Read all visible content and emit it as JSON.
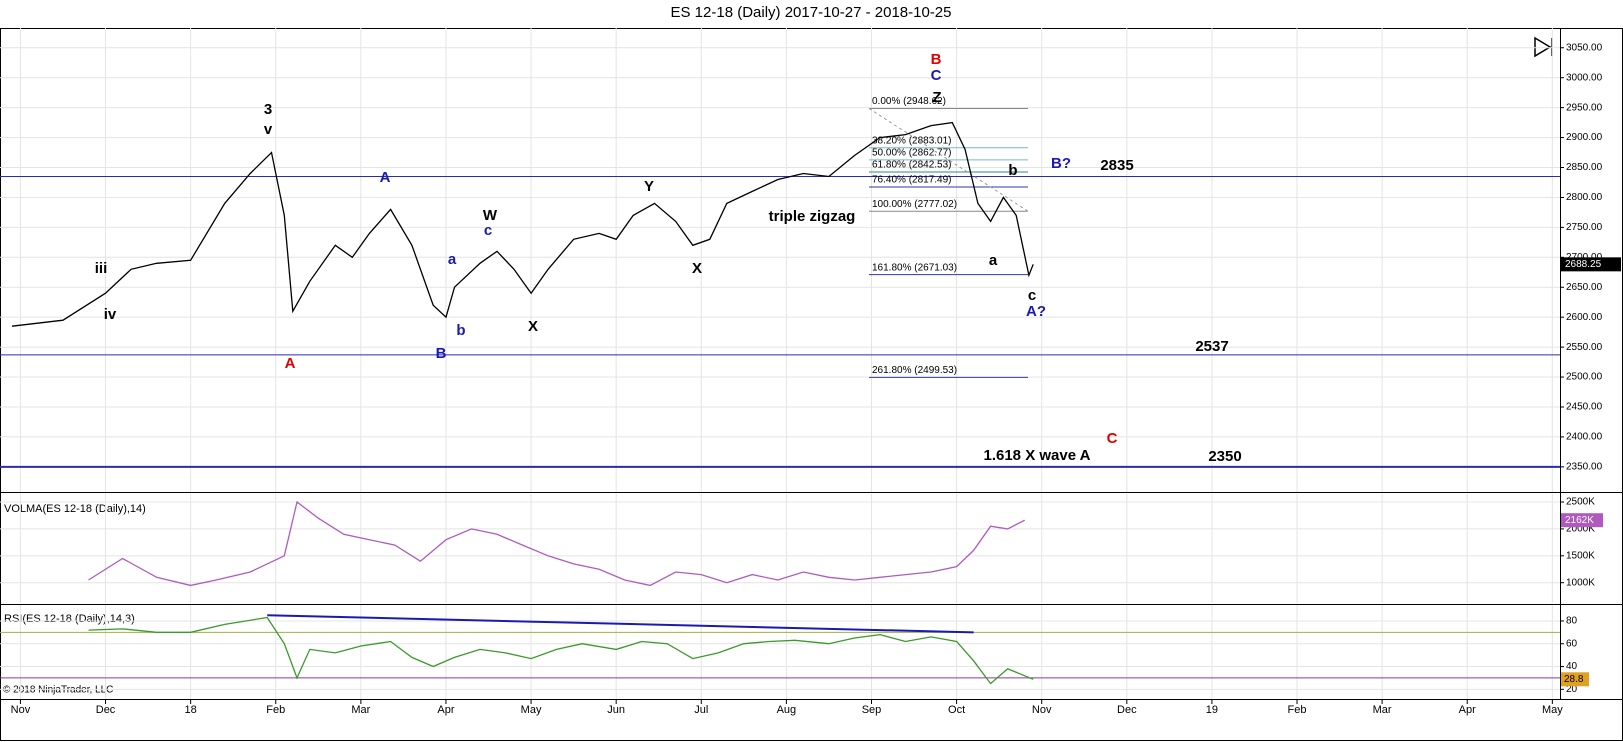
{
  "chart_data": [
    {
      "type": "line",
      "title": "ES 12-18 (Daily)  2017-10-27 - 2018-10-25",
      "xlim": [
        -0.24,
        18.09
      ],
      "ylim": [
        2308,
        3083
      ],
      "yticks": [
        {
          "value": 2350,
          "label": "2350.00"
        },
        {
          "value": 2400,
          "label": "2400.00"
        },
        {
          "value": 2450,
          "label": "2450.00"
        },
        {
          "value": 2500,
          "label": "2500.00"
        },
        {
          "value": 2550,
          "label": "2550.00"
        },
        {
          "value": 2600,
          "label": "2600.00"
        },
        {
          "value": 2650,
          "label": "2650.00"
        },
        {
          "value": 2700,
          "label": "2700.00"
        },
        {
          "value": 2750,
          "label": "2750.00"
        },
        {
          "value": 2800,
          "label": "2800.00"
        },
        {
          "value": 2850,
          "label": "2850.00"
        },
        {
          "value": 2900,
          "label": "2900.00"
        },
        {
          "value": 2950,
          "label": "2950.00"
        },
        {
          "value": 3000,
          "label": "3000.00"
        },
        {
          "value": 3050,
          "label": "3050.00"
        }
      ],
      "x": [
        -0.1,
        0.5,
        1.0,
        1.3,
        1.6,
        2.0,
        2.4,
        2.7,
        2.95,
        3.1,
        3.2,
        3.4,
        3.7,
        3.9,
        4.1,
        4.35,
        4.6,
        4.85,
        5.0,
        5.1,
        5.4,
        5.6,
        5.8,
        6.0,
        6.2,
        6.5,
        6.8,
        7.0,
        7.2,
        7.45,
        7.7,
        7.9,
        8.1,
        8.3,
        8.6,
        8.9,
        9.2,
        9.5,
        9.8,
        10.1,
        10.4,
        10.7,
        10.95,
        11.1,
        11.25,
        11.4,
        11.55,
        11.7,
        11.85,
        11.9
      ],
      "series": [
        {
          "name": "ES 12-18 (Daily)",
          "color": "#000000",
          "values": [
            2585,
            2595,
            2640,
            2680,
            2690,
            2695,
            2790,
            2840,
            2875,
            2770,
            2610,
            2660,
            2720,
            2700,
            2740,
            2780,
            2720,
            2620,
            2600,
            2650,
            2690,
            2710,
            2680,
            2640,
            2680,
            2730,
            2740,
            2730,
            2770,
            2790,
            2760,
            2720,
            2730,
            2790,
            2810,
            2830,
            2840,
            2835,
            2870,
            2900,
            2905,
            2920,
            2925,
            2880,
            2790,
            2760,
            2800,
            2770,
            2670,
            2688.25
          ]
        }
      ],
      "last_value": 2688.25,
      "hlines": [
        2835,
        2537,
        2350
      ],
      "fib_levels": [
        {
          "value": 2948.62,
          "label": "0.00% (2948.62)"
        },
        {
          "value": 2883.01,
          "label": "38.20% (2883.01)"
        },
        {
          "value": 2862.77,
          "label": "50.00% (2862.77)"
        },
        {
          "value": 2842.53,
          "label": "61.80% (2842.53)"
        },
        {
          "value": 2817.49,
          "label": "76.40% (2817.49)"
        },
        {
          "value": 2777.02,
          "label": "100.00% (2777.02)"
        },
        {
          "value": 2671.03,
          "label": "161.80% (2671.03)"
        },
        {
          "value": 2499.53,
          "label": "261.80% (2499.53)"
        }
      ],
      "fib_colors": [
        "#888888",
        "#7ab8c8",
        "#7ab8c8",
        "#2a8a8a",
        "#3333aa",
        "#888888",
        "#3333aa",
        "#3333aa"
      ],
      "annotations": [
        {
          "text": "3",
          "color": "#000000"
        },
        {
          "text": "v",
          "color": "#000000"
        },
        {
          "text": "iii",
          "color": "#000000"
        },
        {
          "text": "iv",
          "color": "#000000"
        },
        {
          "text": "A",
          "color": "#e00000"
        },
        {
          "text": "A",
          "color": "#1a1ab0"
        },
        {
          "text": "a",
          "color": "#1a1ab0"
        },
        {
          "text": "b",
          "color": "#1a1ab0"
        },
        {
          "text": "W",
          "color": "#000000"
        },
        {
          "text": "c",
          "color": "#1a1ab0"
        },
        {
          "text": "B",
          "color": "#1a1ab0"
        },
        {
          "text": "X",
          "color": "#000000"
        },
        {
          "text": "Y",
          "color": "#000000"
        },
        {
          "text": "X",
          "color": "#000000"
        },
        {
          "text": "triple zigzag",
          "color": "#000000"
        },
        {
          "text": "B",
          "color": "#e00000"
        },
        {
          "text": "C",
          "color": "#1a1ab0"
        },
        {
          "text": "Z",
          "color": "#000000"
        },
        {
          "text": "b",
          "color": "#000000"
        },
        {
          "text": "a",
          "color": "#000000"
        },
        {
          "text": "c",
          "color": "#000000"
        },
        {
          "text": "A?",
          "color": "#1a1ab0"
        },
        {
          "text": "B?",
          "color": "#1a1ab0"
        },
        {
          "text": "1.618 X wave A",
          "color": "#000000"
        },
        {
          "text": "C",
          "color": "#e00000"
        }
      ]
    },
    {
      "type": "line",
      "title": "VOLMA(ES 12-18 (Daily),14)",
      "xlim": [
        -0.24,
        18.09
      ],
      "ylim": [
        623,
        2649
      ],
      "yticks": [
        {
          "value": 1000,
          "label": "1000K"
        },
        {
          "value": 1500,
          "label": "1500K"
        },
        {
          "value": 2000,
          "label": "2000K"
        },
        {
          "value": 2500,
          "label": "2500K"
        }
      ],
      "x": [
        0.8,
        1.2,
        1.6,
        2.0,
        2.3,
        2.7,
        3.1,
        3.25,
        3.5,
        3.8,
        4.1,
        4.4,
        4.7,
        5.0,
        5.3,
        5.6,
        5.9,
        6.2,
        6.5,
        6.8,
        7.1,
        7.4,
        7.7,
        8.0,
        8.3,
        8.6,
        8.9,
        9.2,
        9.5,
        9.8,
        10.1,
        10.4,
        10.7,
        11.0,
        11.2,
        11.4,
        11.6,
        11.8
      ],
      "series": [
        {
          "name": "VOLMA",
          "color": "#b05ac0",
          "values": [
            1050,
            1450,
            1100,
            950,
            1050,
            1200,
            1500,
            2500,
            2200,
            1900,
            1800,
            1700,
            1400,
            1800,
            2000,
            1900,
            1700,
            1500,
            1350,
            1250,
            1050,
            950,
            1200,
            1150,
            1000,
            1150,
            1050,
            1200,
            1100,
            1050,
            1100,
            1150,
            1200,
            1300,
            1600,
            2050,
            2000,
            2162
          ]
        }
      ],
      "last_value": {
        "value": 2162,
        "label": "2162K"
      }
    },
    {
      "type": "line",
      "title": "RSI(ES 12-18 (Daily),14,3)",
      "copyright": "© 2018 NinjaTrader, LLC",
      "xlim": [
        -0.24,
        18.09
      ],
      "ylim": [
        11.5,
        94
      ],
      "yticks": [
        20,
        40,
        60,
        80
      ],
      "levels": [
        70,
        30
      ],
      "xticks": [
        {
          "value": 0,
          "label": "Nov"
        },
        {
          "value": 1,
          "label": "Dec"
        },
        {
          "value": 2,
          "label": "18"
        },
        {
          "value": 3,
          "label": "Feb"
        },
        {
          "value": 4,
          "label": "Mar"
        },
        {
          "value": 5,
          "label": "Apr"
        },
        {
          "value": 6,
          "label": "May"
        },
        {
          "value": 7,
          "label": "Jun"
        },
        {
          "value": 8,
          "label": "Jul"
        },
        {
          "value": 9,
          "label": "Aug"
        },
        {
          "value": 10,
          "label": "Sep"
        },
        {
          "value": 11,
          "label": "Oct"
        },
        {
          "value": 12,
          "label": "Nov"
        },
        {
          "value": 13,
          "label": "Dec"
        },
        {
          "value": 14,
          "label": "19"
        },
        {
          "value": 15,
          "label": "Feb"
        },
        {
          "value": 16,
          "label": "Mar"
        },
        {
          "value": 17,
          "label": "Apr"
        },
        {
          "value": 18,
          "label": "May"
        }
      ],
      "x": [
        0.8,
        1.2,
        1.6,
        2.0,
        2.4,
        2.9,
        3.1,
        3.25,
        3.4,
        3.7,
        4.0,
        4.35,
        4.6,
        4.85,
        5.1,
        5.4,
        5.7,
        6.0,
        6.3,
        6.6,
        7.0,
        7.3,
        7.6,
        7.9,
        8.2,
        8.5,
        8.8,
        9.1,
        9.5,
        9.8,
        10.1,
        10.4,
        10.7,
        11.0,
        11.2,
        11.4,
        11.6,
        11.9
      ],
      "series": [
        {
          "name": "RSI",
          "color": "#3a9a2a",
          "values": [
            72,
            73,
            70,
            70,
            77,
            83,
            60,
            30,
            55,
            52,
            58,
            62,
            48,
            40,
            48,
            55,
            52,
            47,
            55,
            60,
            55,
            62,
            60,
            47,
            52,
            60,
            62,
            63,
            60,
            65,
            68,
            62,
            66,
            62,
            45,
            25,
            38,
            28.8
          ]
        }
      ],
      "trendline": {
        "x": [
          2.9,
          11.2
        ],
        "values": [
          85,
          70
        ],
        "color": "#1a1ab0"
      },
      "last_value": 28.8
    }
  ]
}
